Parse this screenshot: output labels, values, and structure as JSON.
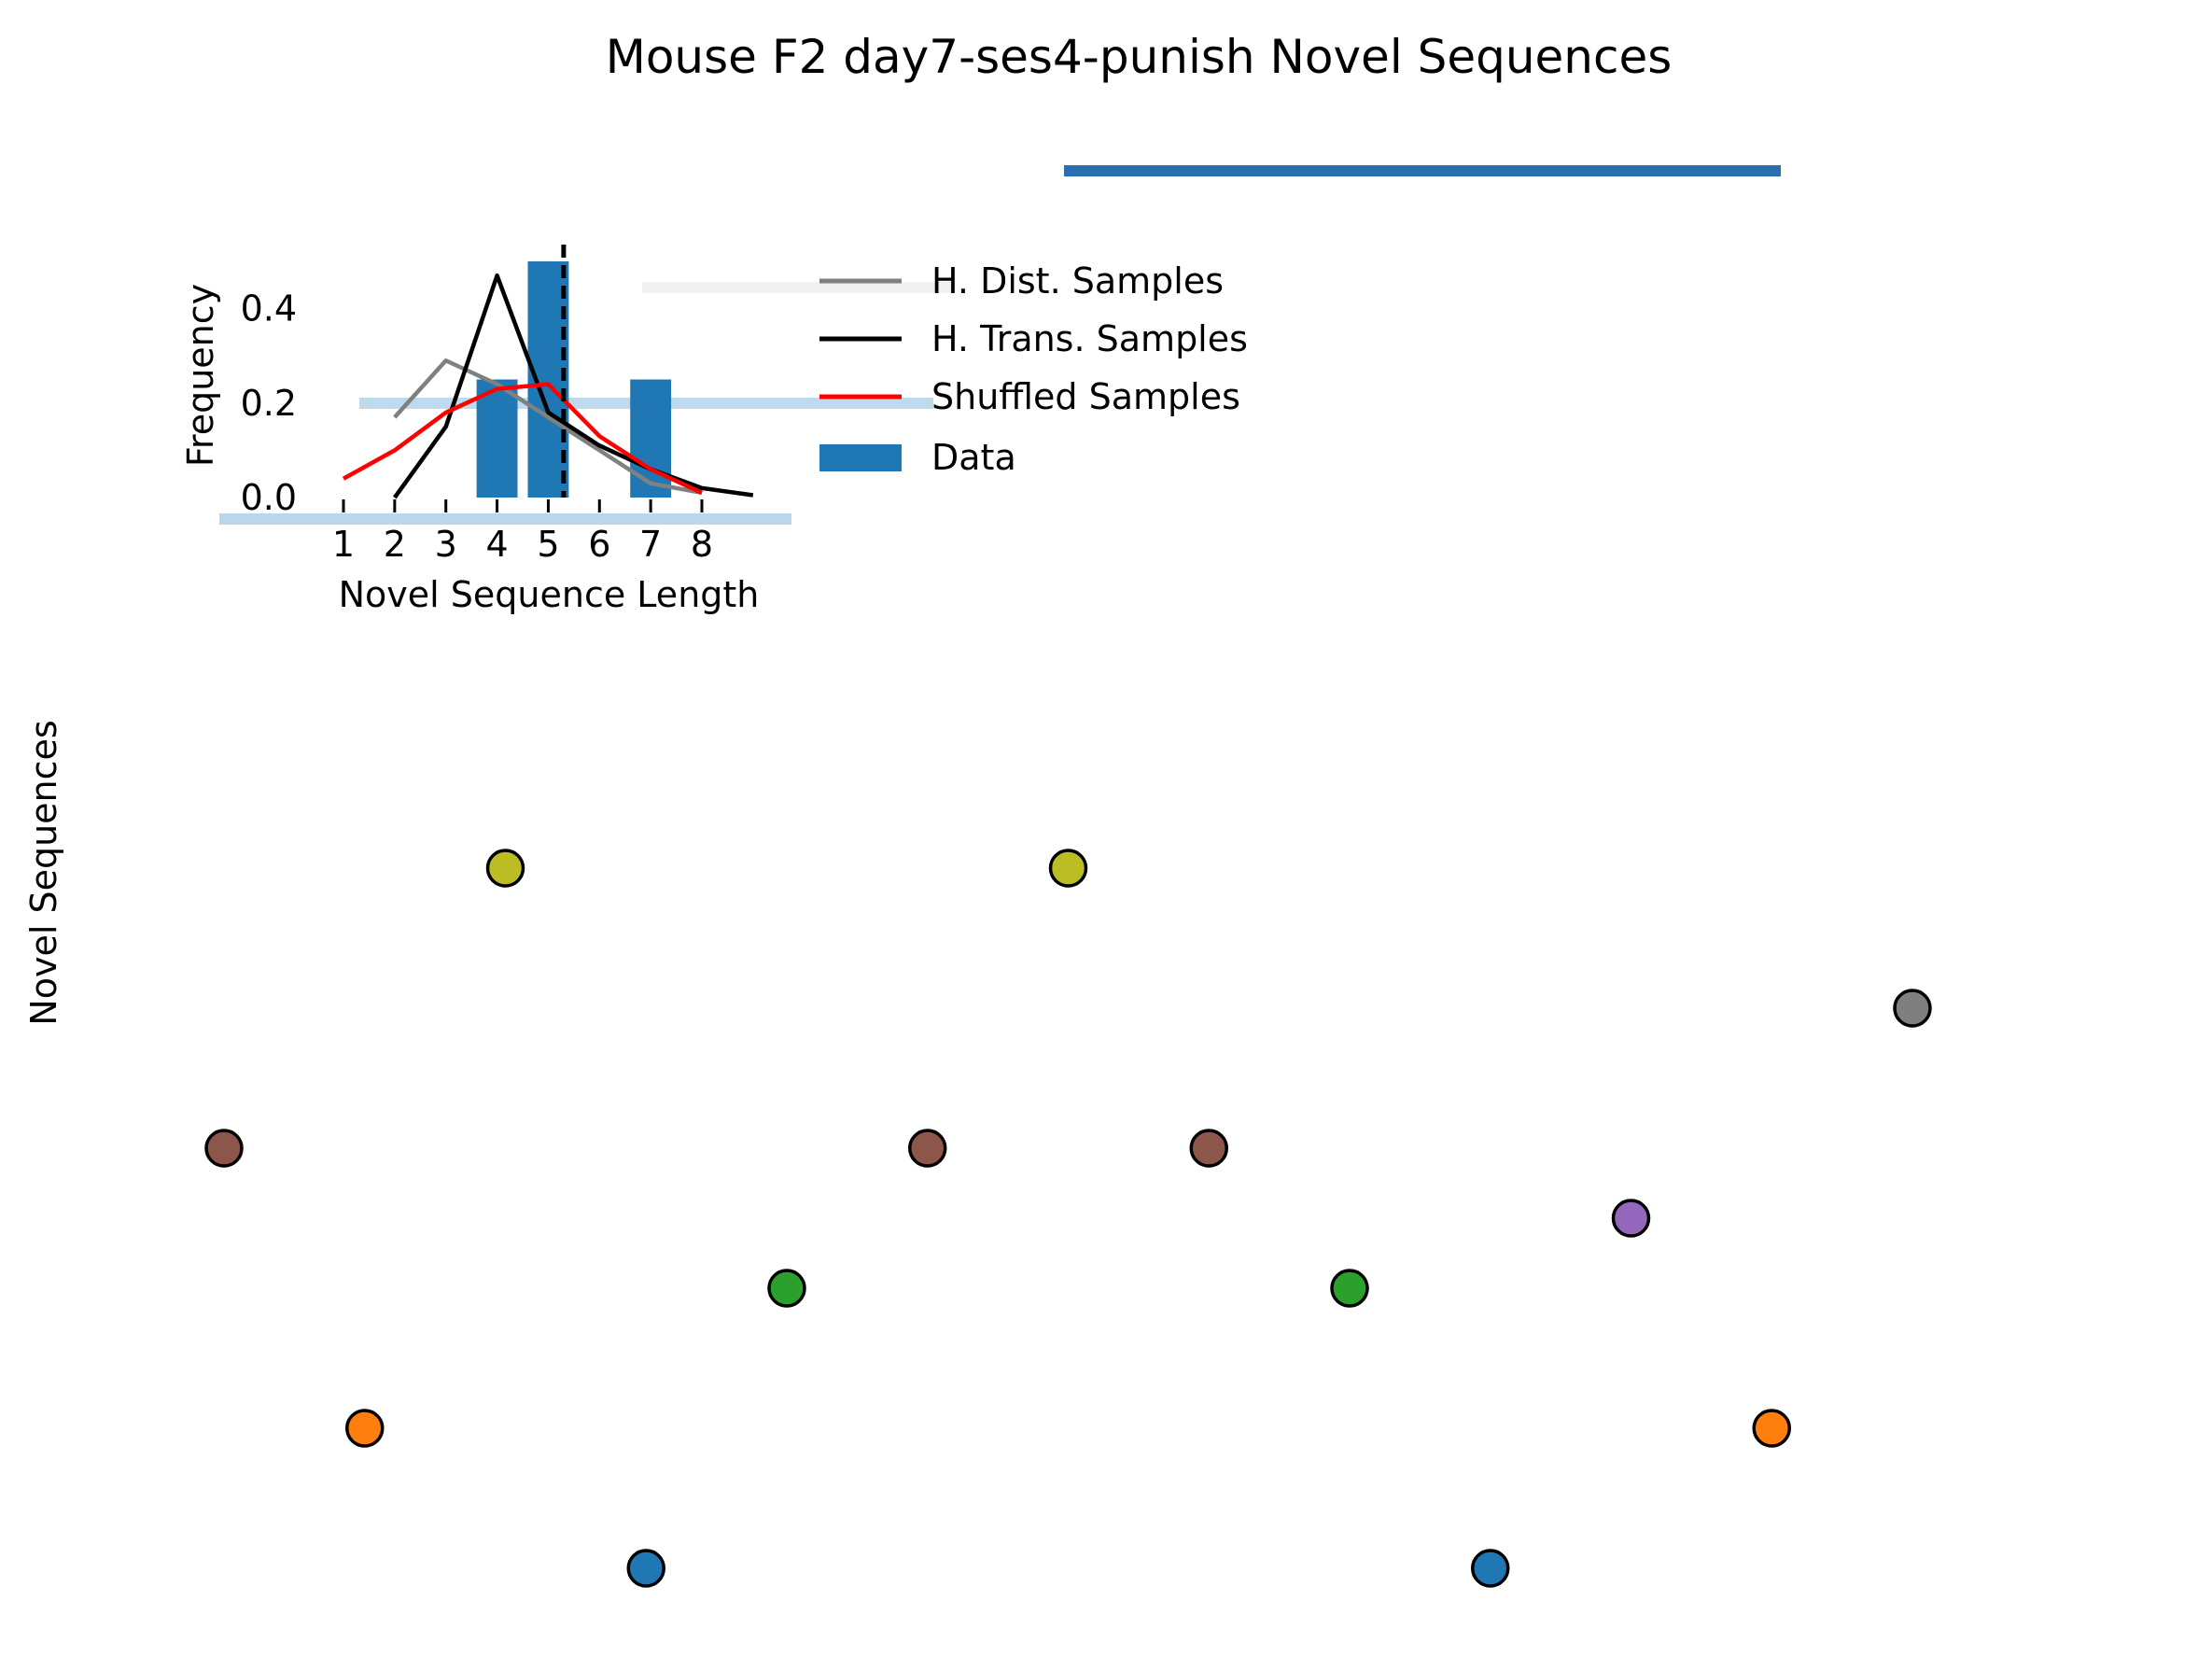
{
  "chart_data": [
    {
      "type": "scatter",
      "title": "Mouse F2 day7-ses4-punish Novel Sequences",
      "ylabel": "Novel Sequences",
      "xlabel": "",
      "grid": false,
      "points": [
        {
          "x": 0,
          "y": 2,
          "color": "#8c564b"
        },
        {
          "x": 1,
          "y": 0,
          "color": "#ff7f0e"
        },
        {
          "x": 2,
          "y": 4,
          "color": "#bcbd22"
        },
        {
          "x": 3,
          "y": -1,
          "color": "#1f77b4"
        },
        {
          "x": 4,
          "y": 1,
          "color": "#2ca02c"
        },
        {
          "x": 5,
          "y": 2,
          "color": "#8c564b"
        },
        {
          "x": 6,
          "y": 4,
          "color": "#bcbd22"
        },
        {
          "x": 7,
          "y": 2,
          "color": "#8c564b"
        },
        {
          "x": 8,
          "y": 1,
          "color": "#2ca02c"
        },
        {
          "x": 9,
          "y": -1,
          "color": "#1f77b4"
        },
        {
          "x": 10,
          "y": 1.5,
          "color": "#9467bd"
        },
        {
          "x": 11,
          "y": 0,
          "color": "#ff7f0e"
        },
        {
          "x": 12,
          "y": 3,
          "color": "#7f7f7f"
        }
      ],
      "xlim": [
        0,
        12
      ],
      "ylim": [
        -1,
        4
      ],
      "accent_bar_color": "#2a6fb0"
    },
    {
      "type": "bar",
      "xlabel": "Novel Sequence Length",
      "ylabel": "Frequency",
      "xticks": [
        1,
        2,
        3,
        4,
        5,
        6,
        7,
        8
      ],
      "yticks": [
        0.0,
        0.2,
        0.4
      ],
      "ytick_labels": [
        "0.0",
        "0.2",
        "0.4"
      ],
      "xlim": [
        0,
        9.5
      ],
      "ylim": [
        0,
        0.5
      ],
      "bars": {
        "name": "Data",
        "color": "#1f77b4",
        "x": [
          4,
          5,
          7
        ],
        "values": [
          0.25,
          0.5,
          0.25
        ]
      },
      "mean_line_x": 5.3,
      "series": [
        {
          "name": "H. Dist. Samples",
          "color": "#808080",
          "x": [
            2,
            3,
            4,
            5,
            6,
            7,
            8
          ],
          "values": [
            0.17,
            0.29,
            0.24,
            0.17,
            0.1,
            0.03,
            0.01
          ]
        },
        {
          "name": "H. Trans. Samples",
          "color": "#000000",
          "x": [
            2,
            3,
            4,
            5,
            6,
            7,
            8,
            9
          ],
          "values": [
            0.0,
            0.15,
            0.47,
            0.18,
            0.11,
            0.06,
            0.02,
            0.005
          ]
        },
        {
          "name": "Shuffled Samples",
          "color": "#ff0000",
          "x": [
            1,
            2,
            3,
            4,
            5,
            6,
            7,
            8
          ],
          "values": [
            0.04,
            0.1,
            0.18,
            0.23,
            0.24,
            0.13,
            0.06,
            0.01
          ]
        }
      ],
      "legend": {
        "placement": "right",
        "entries": [
          "H. Dist. Samples",
          "H. Trans. Samples",
          "Shuffled Samples",
          "Data"
        ]
      }
    }
  ]
}
